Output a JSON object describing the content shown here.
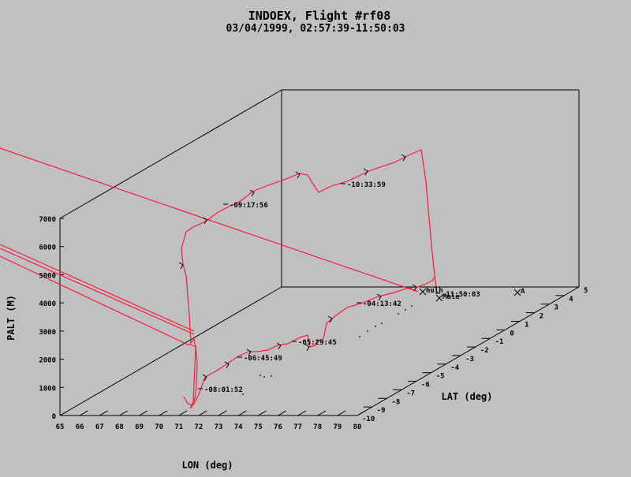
{
  "chart_data": {
    "type": "line",
    "title": "INDOEX, Flight #rf08",
    "subtitle": "03/04/1999, 02:57:39-11:50:03",
    "xlabel": "LON (deg)",
    "ylabel": "LAT (deg)",
    "zlabel": "PALT (M)",
    "xlim": [
      65,
      80
    ],
    "ylim": [
      -10,
      5
    ],
    "zlim": [
      0,
      7000
    ],
    "x_ticks": [
      "65",
      "66",
      "67",
      "68",
      "69",
      "70",
      "71",
      "72",
      "73",
      "74",
      "75",
      "76",
      "77",
      "78",
      "79",
      "80"
    ],
    "y_ticks": [
      "-10",
      "-9",
      "-8",
      "-7",
      "-6",
      "-5",
      "-4",
      "-3",
      "-2",
      "-1",
      "0",
      "1",
      "2",
      "3",
      "4",
      "5"
    ],
    "z_ticks": [
      "0",
      "1000",
      "2000",
      "3000",
      "4000",
      "5000",
      "6000",
      "7000"
    ],
    "colors": {
      "track": "#ff1a3c",
      "axes": "#000000",
      "background": "#c0c0c0"
    },
    "time_labels": [
      {
        "text": "-08:01:52",
        "lon": 71.3,
        "lat": -10,
        "alt": 0
      },
      {
        "text": "-06:45:49",
        "lon": 73.7,
        "lat": -6,
        "alt": 0
      },
      {
        "text": "-05:29:45",
        "lon": 75.2,
        "lat": -3.5,
        "alt": 0
      },
      {
        "text": "-04:13:42",
        "lon": 75.6,
        "lat": 1.5,
        "alt": 0
      },
      {
        "text": "-11:50:03",
        "lon": 73.6,
        "lat": 4.3,
        "alt": 0
      },
      {
        "text": "-09:17:56",
        "lon": 73.0,
        "lat": -1,
        "alt": 6800
      },
      {
        "text": "-10:33:59",
        "lon": 74.5,
        "lat": 3,
        "alt": 6500
      }
    ],
    "sites": [
      {
        "name": "hulh",
        "lon": 73.5,
        "lat": 4.6
      },
      {
        "name": "Male",
        "lon": 73.6,
        "lat": 4.2
      },
      {
        "name": "A",
        "lon": 75.3,
        "lat": 5
      }
    ]
  }
}
